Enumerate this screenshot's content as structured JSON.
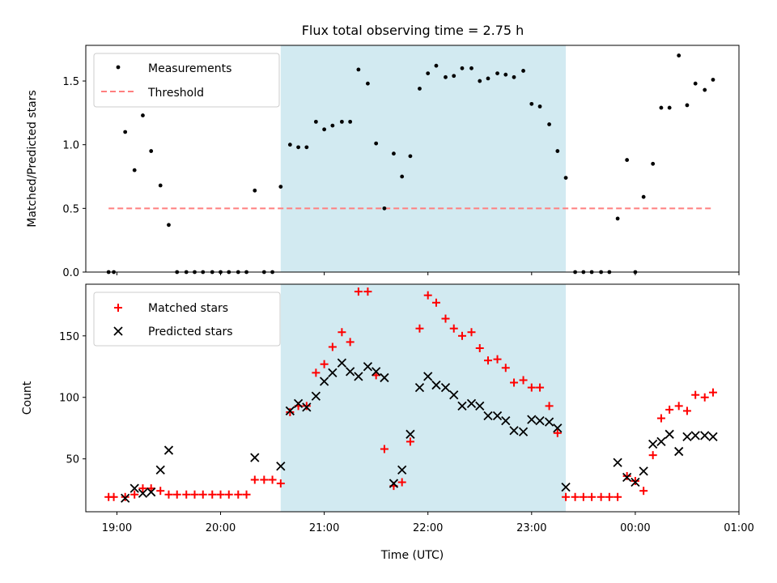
{
  "chart_data": {
    "title": "Flux total observing time = 2.75 h",
    "xlabel": "Time (UTC)",
    "x_tick_labels": [
      "19:00",
      "20:00",
      "21:00",
      "22:00",
      "23:00",
      "00:00",
      "01:00"
    ],
    "x_ticks_hours": [
      19,
      20,
      21,
      22,
      23,
      24,
      25
    ],
    "xlim_hours": [
      18.7,
      25.0
    ],
    "highlight": {
      "start_hours": 20.58,
      "end_hours": 23.33,
      "color": "#add8e6"
    },
    "colors": {
      "measurements": "#000000",
      "threshold": "#ff7f7f",
      "matched": "#ff0000",
      "predicted": "#000000"
    },
    "top": {
      "type": "scatter",
      "ylabel": "Matched/Predicted stars",
      "ylim": [
        0,
        1.78
      ],
      "y_ticks": [
        0.0,
        0.5,
        1.0,
        1.5
      ],
      "y_tick_labels": [
        "0.0",
        "0.5",
        "1.0",
        "1.5"
      ],
      "legend": [
        "Measurements",
        "Threshold"
      ],
      "legend_loc": "upper left",
      "threshold": {
        "value": 0.5,
        "x_start_hours": 18.92,
        "x_end_hours": 24.75
      },
      "measurements": [
        [
          18.92,
          0.0
        ],
        [
          18.97,
          0.0
        ],
        [
          19.08,
          1.1
        ],
        [
          19.17,
          0.8
        ],
        [
          19.25,
          1.23
        ],
        [
          19.33,
          0.95
        ],
        [
          19.42,
          0.68
        ],
        [
          19.5,
          0.37
        ],
        [
          19.58,
          0.0
        ],
        [
          19.67,
          0.0
        ],
        [
          19.75,
          0.0
        ],
        [
          19.83,
          0.0
        ],
        [
          19.92,
          0.0
        ],
        [
          20.0,
          0.0
        ],
        [
          20.08,
          0.0
        ],
        [
          20.17,
          0.0
        ],
        [
          20.25,
          0.0
        ],
        [
          20.33,
          0.64
        ],
        [
          20.42,
          0.0
        ],
        [
          20.5,
          0.0
        ],
        [
          20.58,
          0.67
        ],
        [
          20.67,
          1.0
        ],
        [
          20.75,
          0.98
        ],
        [
          20.83,
          0.98
        ],
        [
          20.92,
          1.18
        ],
        [
          21.0,
          1.12
        ],
        [
          21.08,
          1.15
        ],
        [
          21.17,
          1.18
        ],
        [
          21.25,
          1.18
        ],
        [
          21.33,
          1.59
        ],
        [
          21.42,
          1.48
        ],
        [
          21.5,
          1.01
        ],
        [
          21.58,
          0.5
        ],
        [
          21.67,
          0.93
        ],
        [
          21.75,
          0.75
        ],
        [
          21.83,
          0.91
        ],
        [
          21.92,
          1.44
        ],
        [
          22.0,
          1.56
        ],
        [
          22.08,
          1.62
        ],
        [
          22.17,
          1.53
        ],
        [
          22.25,
          1.54
        ],
        [
          22.33,
          1.6
        ],
        [
          22.42,
          1.6
        ],
        [
          22.5,
          1.5
        ],
        [
          22.58,
          1.52
        ],
        [
          22.67,
          1.56
        ],
        [
          22.75,
          1.55
        ],
        [
          22.83,
          1.53
        ],
        [
          22.92,
          1.58
        ],
        [
          23.0,
          1.32
        ],
        [
          23.08,
          1.3
        ],
        [
          23.17,
          1.16
        ],
        [
          23.25,
          0.95
        ],
        [
          23.33,
          0.74
        ],
        [
          23.42,
          0.0
        ],
        [
          23.5,
          0.0
        ],
        [
          23.58,
          0.0
        ],
        [
          23.67,
          0.0
        ],
        [
          23.75,
          0.0
        ],
        [
          23.83,
          0.42
        ],
        [
          23.92,
          0.88
        ],
        [
          24.0,
          0.0
        ],
        [
          24.08,
          0.59
        ],
        [
          24.17,
          0.85
        ],
        [
          24.25,
          1.29
        ],
        [
          24.33,
          1.29
        ],
        [
          24.42,
          1.7
        ],
        [
          24.5,
          1.31
        ],
        [
          24.58,
          1.48
        ],
        [
          24.67,
          1.43
        ],
        [
          24.75,
          1.51
        ]
      ]
    },
    "bottom": {
      "type": "scatter",
      "ylabel": "Count",
      "ylim": [
        7,
        192
      ],
      "y_ticks": [
        50,
        100,
        150
      ],
      "y_tick_labels": [
        "50",
        "100",
        "150"
      ],
      "legend": [
        "Matched stars",
        "Predicted stars"
      ],
      "legend_loc": "upper left",
      "matched": [
        [
          18.92,
          19
        ],
        [
          18.97,
          19
        ],
        [
          19.08,
          19
        ],
        [
          19.17,
          21
        ],
        [
          19.25,
          26
        ],
        [
          19.33,
          26
        ],
        [
          19.42,
          24
        ],
        [
          19.5,
          21
        ],
        [
          19.58,
          21
        ],
        [
          19.67,
          21
        ],
        [
          19.75,
          21
        ],
        [
          19.83,
          21
        ],
        [
          19.92,
          21
        ],
        [
          20.0,
          21
        ],
        [
          20.08,
          21
        ],
        [
          20.17,
          21
        ],
        [
          20.25,
          21
        ],
        [
          20.33,
          33
        ],
        [
          20.42,
          33
        ],
        [
          20.5,
          33
        ],
        [
          20.58,
          30
        ],
        [
          20.67,
          88
        ],
        [
          20.75,
          93
        ],
        [
          20.83,
          93
        ],
        [
          20.92,
          120
        ],
        [
          21.0,
          127
        ],
        [
          21.08,
          141
        ],
        [
          21.17,
          153
        ],
        [
          21.25,
          145
        ],
        [
          21.33,
          186
        ],
        [
          21.42,
          186
        ],
        [
          21.5,
          118
        ],
        [
          21.58,
          58
        ],
        [
          21.67,
          28
        ],
        [
          21.75,
          31
        ],
        [
          21.83,
          64
        ],
        [
          21.92,
          156
        ],
        [
          22.0,
          183
        ],
        [
          22.08,
          177
        ],
        [
          22.17,
          164
        ],
        [
          22.25,
          156
        ],
        [
          22.33,
          150
        ],
        [
          22.42,
          153
        ],
        [
          22.5,
          140
        ],
        [
          22.58,
          130
        ],
        [
          22.67,
          131
        ],
        [
          22.75,
          124
        ],
        [
          22.83,
          112
        ],
        [
          22.92,
          114
        ],
        [
          23.0,
          108
        ],
        [
          23.08,
          108
        ],
        [
          23.17,
          93
        ],
        [
          23.25,
          71
        ],
        [
          23.33,
          19
        ],
        [
          23.42,
          19
        ],
        [
          23.5,
          19
        ],
        [
          23.58,
          19
        ],
        [
          23.67,
          19
        ],
        [
          23.75,
          19
        ],
        [
          23.83,
          19
        ],
        [
          23.92,
          36
        ],
        [
          24.0,
          32
        ],
        [
          24.08,
          24
        ],
        [
          24.17,
          53
        ],
        [
          24.25,
          83
        ],
        [
          24.33,
          90
        ],
        [
          24.42,
          93
        ],
        [
          24.5,
          89
        ],
        [
          24.58,
          102
        ],
        [
          24.67,
          100
        ],
        [
          24.75,
          104
        ]
      ],
      "predicted": [
        [
          19.08,
          18
        ],
        [
          19.17,
          26
        ],
        [
          19.25,
          22
        ],
        [
          19.33,
          23
        ],
        [
          19.42,
          41
        ],
        [
          19.5,
          57
        ],
        [
          20.33,
          51
        ],
        [
          20.58,
          44
        ],
        [
          20.67,
          89
        ],
        [
          20.75,
          95
        ],
        [
          20.83,
          92
        ],
        [
          20.92,
          101
        ],
        [
          21.0,
          113
        ],
        [
          21.08,
          120
        ],
        [
          21.17,
          128
        ],
        [
          21.25,
          121
        ],
        [
          21.33,
          117
        ],
        [
          21.42,
          125
        ],
        [
          21.5,
          121
        ],
        [
          21.58,
          116
        ],
        [
          21.67,
          30
        ],
        [
          21.75,
          41
        ],
        [
          21.83,
          70
        ],
        [
          21.92,
          108
        ],
        [
          22.0,
          117
        ],
        [
          22.08,
          110
        ],
        [
          22.17,
          108
        ],
        [
          22.25,
          102
        ],
        [
          22.33,
          93
        ],
        [
          22.42,
          95
        ],
        [
          22.5,
          93
        ],
        [
          22.58,
          85
        ],
        [
          22.67,
          85
        ],
        [
          22.75,
          81
        ],
        [
          22.83,
          73
        ],
        [
          22.92,
          72
        ],
        [
          23.0,
          82
        ],
        [
          23.08,
          81
        ],
        [
          23.17,
          80
        ],
        [
          23.25,
          75
        ],
        [
          23.33,
          27
        ],
        [
          23.83,
          47
        ],
        [
          23.92,
          35
        ],
        [
          24.0,
          31
        ],
        [
          24.08,
          40
        ],
        [
          24.17,
          62
        ],
        [
          24.25,
          64
        ],
        [
          24.33,
          70
        ],
        [
          24.42,
          56
        ],
        [
          24.5,
          68
        ],
        [
          24.58,
          69
        ],
        [
          24.67,
          69
        ],
        [
          24.75,
          68
        ]
      ]
    }
  }
}
